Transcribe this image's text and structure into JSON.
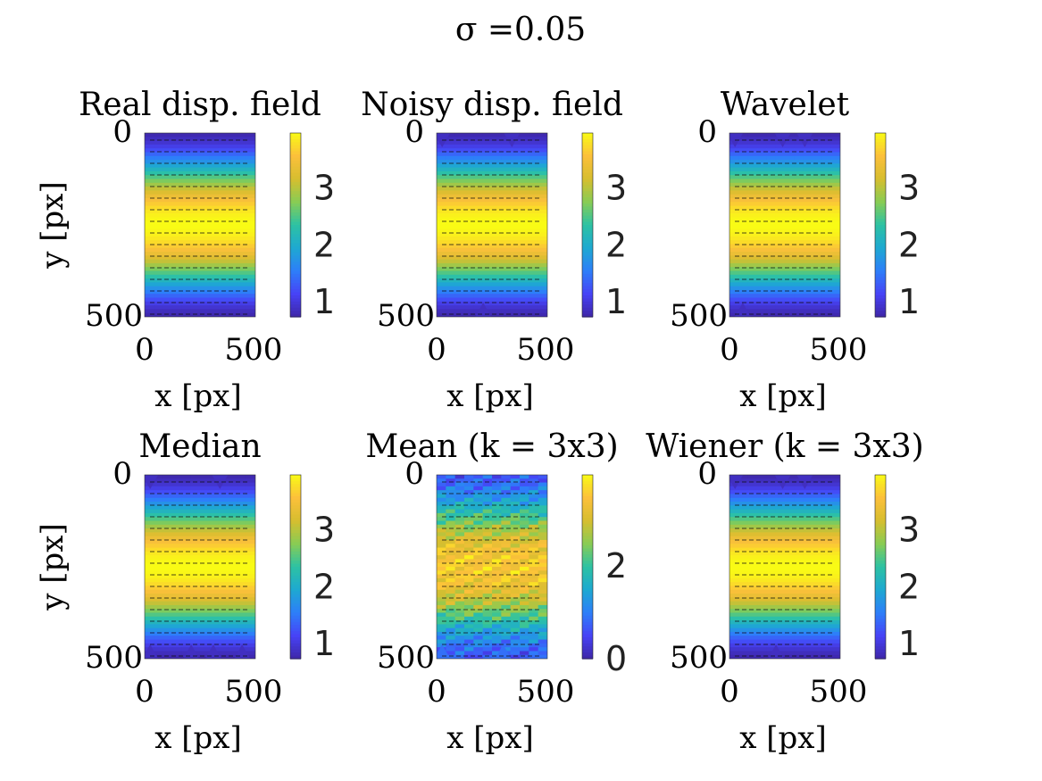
{
  "figure_title": "σ =0.05",
  "colormap": [
    "#3e26a8",
    "#4743f6",
    "#2d7ff9",
    "#1ea9d1",
    "#2dc2a3",
    "#89cc54",
    "#d7be2f",
    "#fcc03b",
    "#f9fb15"
  ],
  "chart_data": [
    {
      "type": "heatmap",
      "title": "Real disp. field",
      "xlabel": "x [px]",
      "ylabel": "y [px]",
      "x_ticks": [
        "0",
        "500"
      ],
      "y_ticks": [
        "0",
        "500"
      ],
      "xlim": [
        0,
        500
      ],
      "ylim": [
        0,
        500
      ],
      "colorbar": {
        "ticks": [
          "1",
          "2",
          "3"
        ],
        "tick_values": [
          1,
          2,
          3
        ],
        "min": 0.72,
        "max": 3.95
      },
      "profile": "clean",
      "dips_top": [],
      "dips_bottom": []
    },
    {
      "type": "heatmap",
      "title": "Noisy disp. field",
      "xlabel": "x [px]",
      "ylabel": "",
      "x_ticks": [
        "0",
        "500"
      ],
      "y_ticks": [
        "0",
        "500"
      ],
      "xlim": [
        0,
        500
      ],
      "ylim": [
        0,
        500
      ],
      "colorbar": {
        "ticks": [
          "1",
          "2",
          "3"
        ],
        "tick_values": [
          1,
          2,
          3
        ],
        "min": 0.72,
        "max": 3.95
      },
      "profile": "clean",
      "dips_top": [
        25,
        340
      ],
      "dips_bottom": [
        210
      ]
    },
    {
      "type": "heatmap",
      "title": "Wavelet",
      "xlabel": "x [px]",
      "ylabel": "",
      "x_ticks": [
        "0",
        "500"
      ],
      "y_ticks": [
        "0",
        "500"
      ],
      "xlim": [
        0,
        500
      ],
      "ylim": [
        0,
        500
      ],
      "colorbar": {
        "ticks": [
          "1",
          "2",
          "3"
        ],
        "tick_values": [
          1,
          2,
          3
        ],
        "min": 0.72,
        "max": 3.95
      },
      "profile": "clean",
      "dips_top": [
        25,
        240,
        340
      ],
      "dips_bottom": [
        60
      ]
    },
    {
      "type": "heatmap",
      "title": "Median",
      "xlabel": "x [px]",
      "ylabel": "y [px]",
      "x_ticks": [
        "0",
        "500"
      ],
      "y_ticks": [
        "0",
        "500"
      ],
      "xlim": [
        0,
        500
      ],
      "ylim": [
        0,
        500
      ],
      "colorbar": {
        "ticks": [
          "1",
          "2",
          "3"
        ],
        "tick_values": [
          1,
          2,
          3
        ],
        "min": 0.72,
        "max": 3.95
      },
      "profile": "clean",
      "dips_top": [
        25,
        340
      ],
      "dips_bottom": [
        25,
        210,
        310,
        440
      ]
    },
    {
      "type": "heatmap",
      "title": "Mean (k = 3x3)",
      "xlabel": "x [px]",
      "ylabel": "",
      "x_ticks": [
        "0",
        "500"
      ],
      "y_ticks": [
        "0",
        "500"
      ],
      "xlim": [
        0,
        500
      ],
      "ylim": [
        0,
        500
      ],
      "colorbar": {
        "ticks": [
          "0",
          "2"
        ],
        "tick_values": [
          0,
          2
        ],
        "min": -0.02,
        "max": 3.95
      },
      "profile": "noisy",
      "dips_top": [],
      "dips_bottom": [
        25,
        300
      ]
    },
    {
      "type": "heatmap",
      "title": "Wiener (k = 3x3)",
      "xlabel": "x [px]",
      "ylabel": "",
      "x_ticks": [
        "0",
        "500"
      ],
      "y_ticks": [
        "0",
        "500"
      ],
      "xlim": [
        0,
        500
      ],
      "ylim": [
        0,
        500
      ],
      "colorbar": {
        "ticks": [
          "1",
          "2",
          "3"
        ],
        "tick_values": [
          1,
          2,
          3
        ],
        "min": 0.72,
        "max": 3.95
      },
      "profile": "clean",
      "dips_top": [
        25,
        240,
        340
      ],
      "dips_bottom": [
        210
      ]
    }
  ]
}
